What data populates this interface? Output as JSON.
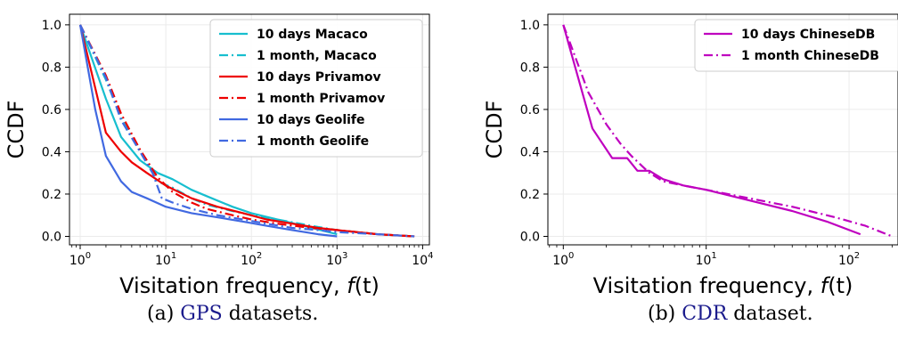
{
  "chart_data": [
    {
      "type": "line",
      "xscale": "log",
      "xlabel": "Visitation frequency, f(t)",
      "ylabel": "CCDF",
      "xlim": [
        0.75,
        12000
      ],
      "ylim": [
        -0.04,
        1.05
      ],
      "xticks": [
        "10^0",
        "10^1",
        "10^2",
        "10^3",
        "10^4"
      ],
      "yticks": [
        "0.0",
        "0.2",
        "0.4",
        "0.6",
        "0.8",
        "1.0"
      ],
      "grid": true,
      "legend_position": "top-right",
      "series": [
        {
          "name": "10 days Macaco",
          "color": "#17becf",
          "dash": "solid",
          "x": [
            1,
            2,
            3,
            5,
            8,
            12,
            20,
            30,
            60,
            100,
            200,
            400,
            1000
          ],
          "y": [
            1.0,
            0.65,
            0.47,
            0.36,
            0.3,
            0.27,
            0.22,
            0.19,
            0.14,
            0.11,
            0.08,
            0.05,
            0.01
          ]
        },
        {
          "name": "1 month, Macaco",
          "color": "#17becf",
          "dash": "dashdot",
          "x": [
            1,
            2,
            3,
            5,
            8,
            12,
            20,
            30,
            60,
            100,
            200,
            500,
            1000,
            3000,
            8000
          ],
          "y": [
            1.0,
            0.74,
            0.56,
            0.4,
            0.26,
            0.23,
            0.18,
            0.15,
            0.12,
            0.1,
            0.08,
            0.05,
            0.03,
            0.01,
            0.0
          ]
        },
        {
          "name": "10 days Privamov",
          "color": "#ee0000",
          "dash": "solid",
          "x": [
            1,
            2,
            3,
            4,
            6,
            10,
            20,
            40,
            80,
            150,
            300,
            600,
            1000,
            3000,
            8000
          ],
          "y": [
            1.0,
            0.49,
            0.4,
            0.35,
            0.3,
            0.24,
            0.18,
            0.14,
            0.11,
            0.08,
            0.06,
            0.04,
            0.03,
            0.01,
            0.0
          ]
        },
        {
          "name": "1 month Privamov",
          "color": "#ee0000",
          "dash": "dashdot",
          "x": [
            1,
            2,
            3,
            5,
            8,
            12,
            20,
            30,
            60,
            100,
            200,
            500,
            1000,
            3000,
            8000
          ],
          "y": [
            1.0,
            0.76,
            0.58,
            0.41,
            0.28,
            0.21,
            0.16,
            0.13,
            0.1,
            0.08,
            0.06,
            0.04,
            0.03,
            0.01,
            0.0
          ]
        },
        {
          "name": "10 days Geolife",
          "color": "#4169e1",
          "dash": "solid",
          "x": [
            1,
            1.5,
            2,
            3,
            4,
            6,
            10,
            20,
            40,
            80,
            150,
            300,
            600,
            1000
          ],
          "y": [
            1.0,
            0.6,
            0.38,
            0.26,
            0.21,
            0.18,
            0.14,
            0.11,
            0.09,
            0.07,
            0.05,
            0.03,
            0.01,
            0.0
          ]
        },
        {
          "name": "1 month Geolife",
          "color": "#4169e1",
          "dash": "dashdot",
          "x": [
            1,
            2,
            3,
            5,
            7,
            9,
            12,
            20,
            40,
            80,
            150,
            300,
            600,
            1000,
            3000,
            8000
          ],
          "y": [
            1.0,
            0.75,
            0.55,
            0.4,
            0.3,
            0.18,
            0.16,
            0.13,
            0.1,
            0.08,
            0.06,
            0.04,
            0.03,
            0.02,
            0.01,
            0.0
          ]
        }
      ]
    },
    {
      "type": "line",
      "xscale": "log",
      "xlabel": "Visitation frequency, f(t)",
      "ylabel": "CCDF",
      "xlim": [
        0.78,
        220
      ],
      "ylim": [
        -0.04,
        1.05
      ],
      "xticks": [
        "10^0",
        "10^1",
        "10^2"
      ],
      "yticks": [
        "0.0",
        "0.2",
        "0.4",
        "0.6",
        "0.8",
        "1.0"
      ],
      "grid": true,
      "legend_position": "top-right",
      "series": [
        {
          "name": "10 days ChineseDB",
          "color": "#bf00bf",
          "dash": "solid",
          "x": [
            1,
            1.6,
            2.2,
            2.8,
            3.3,
            4,
            5,
            7,
            10,
            20,
            40,
            70,
            120
          ],
          "y": [
            1.0,
            0.51,
            0.37,
            0.37,
            0.31,
            0.31,
            0.27,
            0.24,
            0.22,
            0.17,
            0.12,
            0.07,
            0.01
          ]
        },
        {
          "name": "1 month ChineseDB",
          "color": "#bf00bf",
          "dash": "dashdot",
          "x": [
            1,
            1.5,
            2,
            2.5,
            3,
            4,
            5,
            7,
            10,
            20,
            40,
            80,
            130,
            200
          ],
          "y": [
            1.0,
            0.68,
            0.53,
            0.44,
            0.38,
            0.3,
            0.26,
            0.24,
            0.22,
            0.18,
            0.14,
            0.09,
            0.05,
            0.0
          ]
        }
      ]
    }
  ],
  "captions": {
    "a": {
      "prefix": "(a) ",
      "abbr": "GPS",
      "suffix": " datasets."
    },
    "b": {
      "prefix": "(b) ",
      "abbr": "CDR",
      "suffix": " dataset."
    }
  }
}
